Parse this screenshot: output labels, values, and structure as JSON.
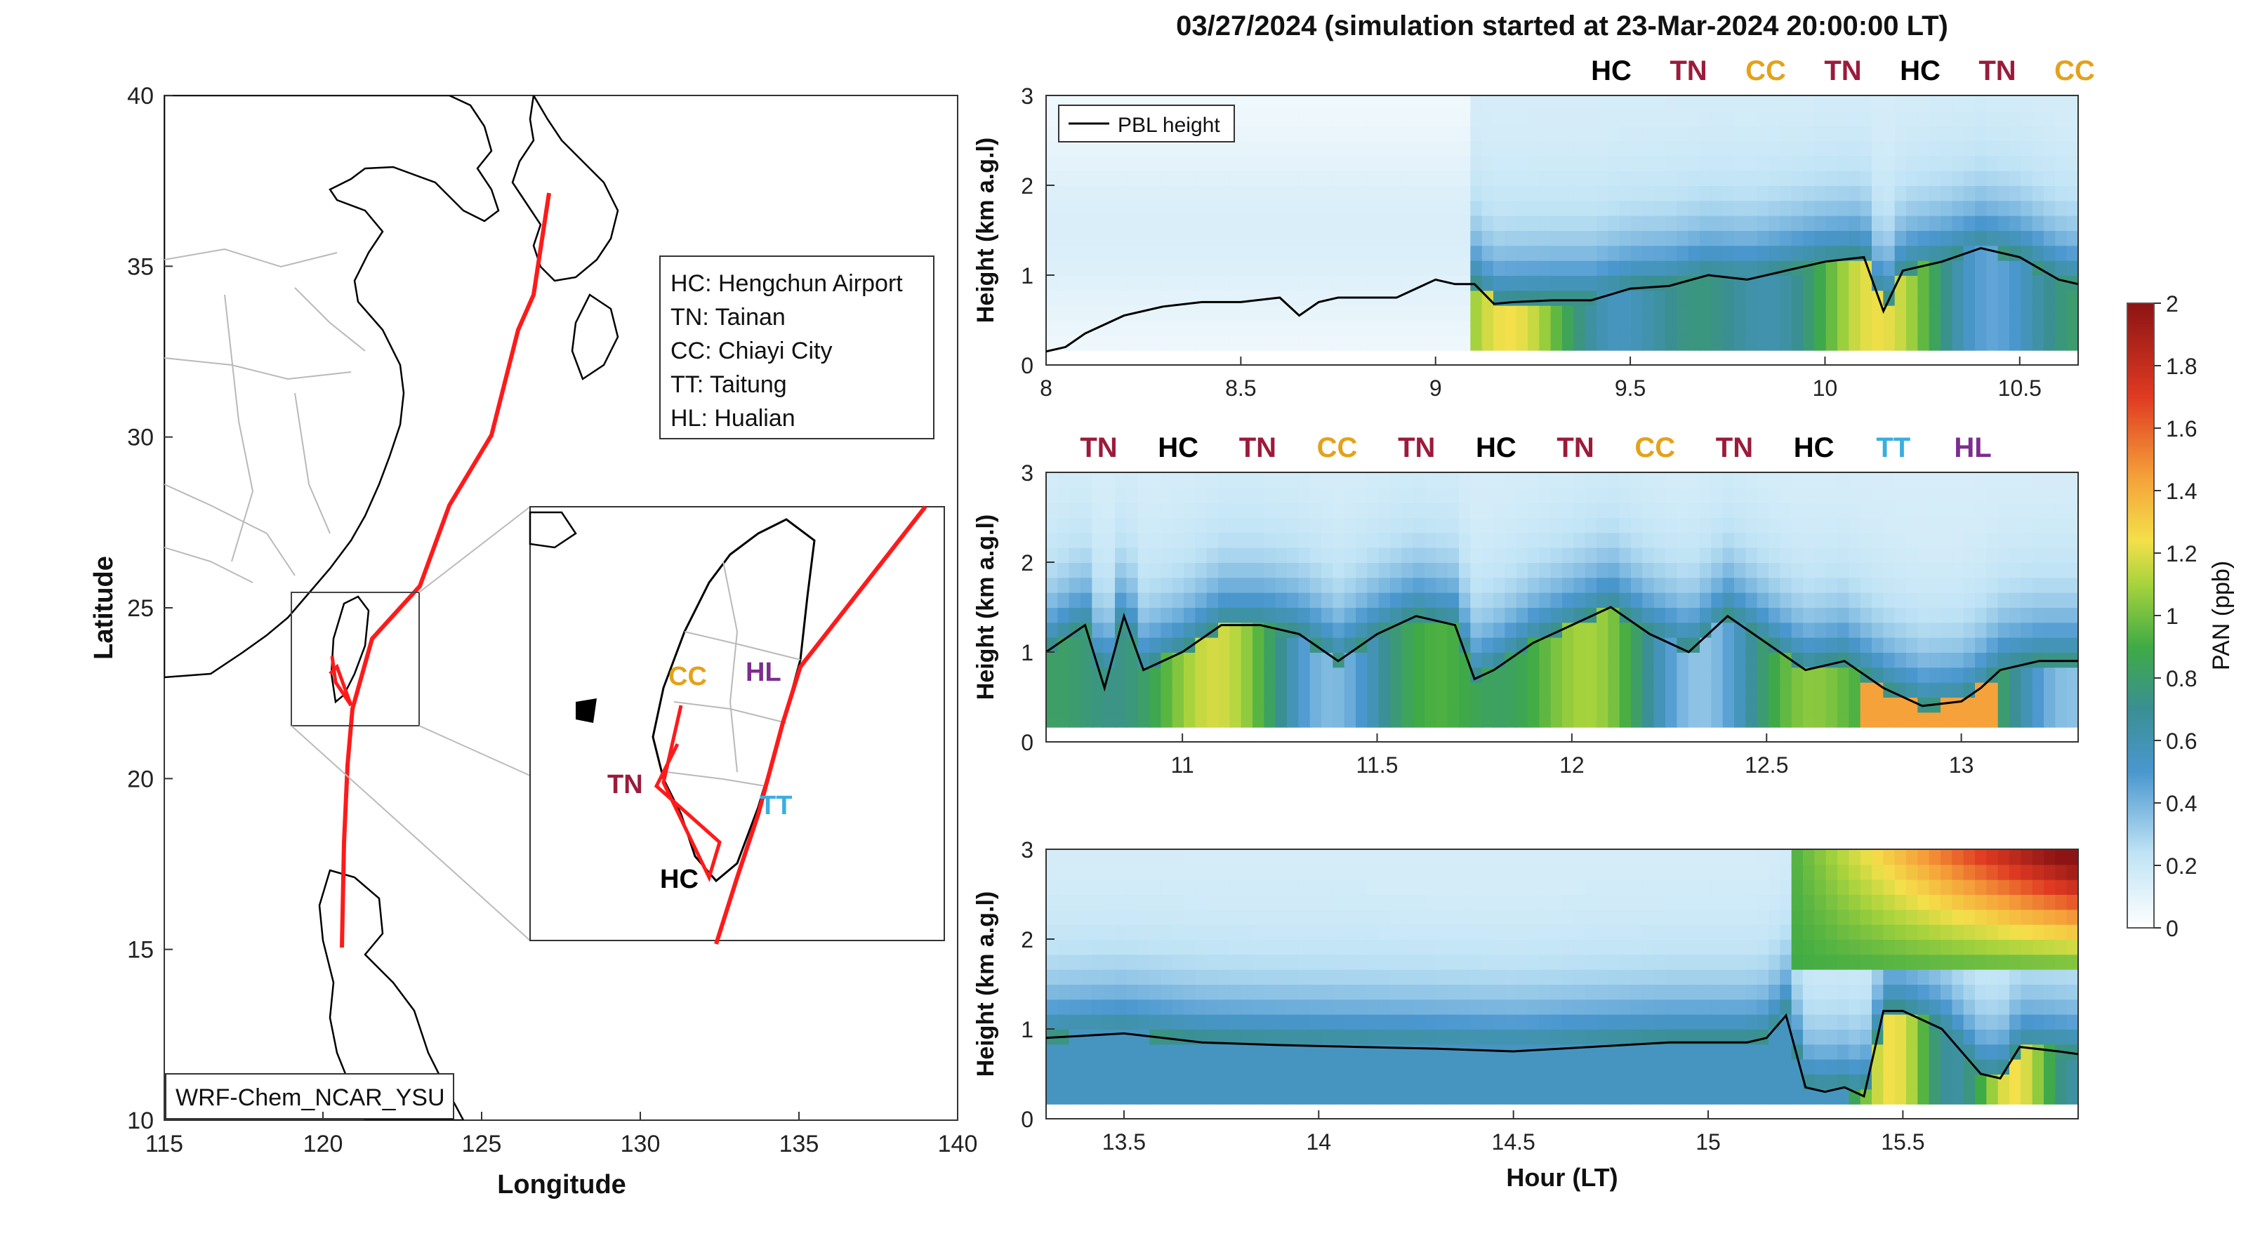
{
  "title": "03/27/2024 (simulation started at 23-Mar-2024 20:00:00 LT)",
  "colors": {
    "HC": "#000000",
    "TN": "#9b1b3b",
    "CC": "#e3a21a",
    "TT": "#3aaee0",
    "HL": "#7b2d8e",
    "track": "#ff1a1a",
    "pbl": "#000000"
  },
  "map": {
    "xlabel": "Longitude",
    "ylabel": "Latitude",
    "xticks": [
      "115",
      "120",
      "125",
      "130",
      "135",
      "140"
    ],
    "yticks": [
      "10",
      "15",
      "20",
      "25",
      "30",
      "35",
      "40"
    ],
    "model_label": "WRF-Chem_NCAR_YSU",
    "legend": [
      "HC: Hengchun Airport",
      "TN: Tainan",
      "CC: Chiayi City",
      "TT: Taitung",
      "HL: Hualian"
    ],
    "inset_labels": [
      "CC",
      "HL",
      "TN",
      "TT",
      "HC"
    ]
  },
  "colorbar": {
    "label": "PAN (ppb)",
    "ticks": [
      "0",
      "0.2",
      "0.4",
      "0.6",
      "0.8",
      "1",
      "1.2",
      "1.4",
      "1.6",
      "1.8",
      "2"
    ]
  },
  "chart_data": [
    {
      "type": "line",
      "ylabel": "Height (km a.g.l)",
      "legend": "PBL height",
      "xlim": [
        8,
        10.65
      ],
      "ylim": [
        0,
        3
      ],
      "xticks": [
        "8",
        "8.5",
        "9",
        "9.5",
        "10",
        "10.5"
      ],
      "yticks": [
        "0",
        "1",
        "2",
        "3"
      ],
      "site_labels": [
        "HC",
        "TN",
        "CC",
        "TN",
        "HC",
        "TN",
        "CC"
      ],
      "pbl_x": [
        8,
        8.05,
        8.1,
        8.2,
        8.3,
        8.4,
        8.5,
        8.6,
        8.65,
        8.7,
        8.75,
        8.8,
        8.9,
        9.0,
        9.05,
        9.1,
        9.15,
        9.2,
        9.3,
        9.4,
        9.5,
        9.6,
        9.7,
        9.8,
        9.9,
        10.0,
        10.1,
        10.15,
        10.2,
        10.3,
        10.4,
        10.5,
        10.6,
        10.65
      ],
      "pbl_y": [
        0.15,
        0.2,
        0.35,
        0.55,
        0.65,
        0.7,
        0.7,
        0.75,
        0.55,
        0.7,
        0.75,
        0.75,
        0.75,
        0.95,
        0.9,
        0.9,
        0.68,
        0.7,
        0.72,
        0.72,
        0.85,
        0.88,
        1.0,
        0.95,
        1.05,
        1.15,
        1.2,
        0.6,
        1.05,
        1.15,
        1.3,
        1.2,
        0.95,
        0.9
      ]
    },
    {
      "type": "line",
      "ylabel": "Height (km a.g.l)",
      "xlim": [
        10.65,
        13.3
      ],
      "ylim": [
        0,
        3
      ],
      "xticks": [
        "11",
        "11.5",
        "12",
        "12.5",
        "13"
      ],
      "yticks": [
        "0",
        "1",
        "2",
        "3"
      ],
      "site_labels": [
        "TN",
        "HC",
        "TN",
        "CC",
        "TN",
        "HC",
        "TN",
        "CC",
        "TN",
        "HC",
        "TT",
        "HL"
      ],
      "pbl_x": [
        10.65,
        10.75,
        10.8,
        10.85,
        10.9,
        11.0,
        11.1,
        11.2,
        11.3,
        11.4,
        11.5,
        11.6,
        11.7,
        11.75,
        11.8,
        11.9,
        12.0,
        12.1,
        12.2,
        12.3,
        12.4,
        12.5,
        12.6,
        12.7,
        12.8,
        12.9,
        13.0,
        13.05,
        13.1,
        13.2,
        13.3
      ],
      "pbl_y": [
        1.0,
        1.3,
        0.6,
        1.4,
        0.8,
        1.0,
        1.3,
        1.3,
        1.2,
        0.9,
        1.2,
        1.4,
        1.3,
        0.7,
        0.8,
        1.1,
        1.3,
        1.5,
        1.2,
        1.0,
        1.4,
        1.1,
        0.8,
        0.9,
        0.6,
        0.4,
        0.45,
        0.6,
        0.8,
        0.9,
        0.9
      ]
    },
    {
      "type": "line",
      "ylabel": "Height (km a.g.l)",
      "xlabel": "Hour (LT)",
      "xlim": [
        13.3,
        15.95
      ],
      "ylim": [
        0,
        3
      ],
      "xticks": [
        "13.5",
        "14",
        "14.5",
        "15",
        "15.5"
      ],
      "yticks": [
        "0",
        "1",
        "2",
        "3"
      ],
      "pbl_x": [
        13.3,
        13.5,
        13.7,
        13.9,
        14.1,
        14.3,
        14.5,
        14.7,
        14.9,
        15.1,
        15.15,
        15.2,
        15.25,
        15.3,
        15.35,
        15.4,
        15.45,
        15.5,
        15.6,
        15.7,
        15.75,
        15.8,
        15.9,
        15.95
      ],
      "pbl_y": [
        0.9,
        0.95,
        0.85,
        0.82,
        0.8,
        0.78,
        0.75,
        0.8,
        0.85,
        0.85,
        0.9,
        1.15,
        0.35,
        0.3,
        0.35,
        0.25,
        1.2,
        1.2,
        1.0,
        0.5,
        0.45,
        0.8,
        0.75,
        0.72
      ]
    }
  ]
}
